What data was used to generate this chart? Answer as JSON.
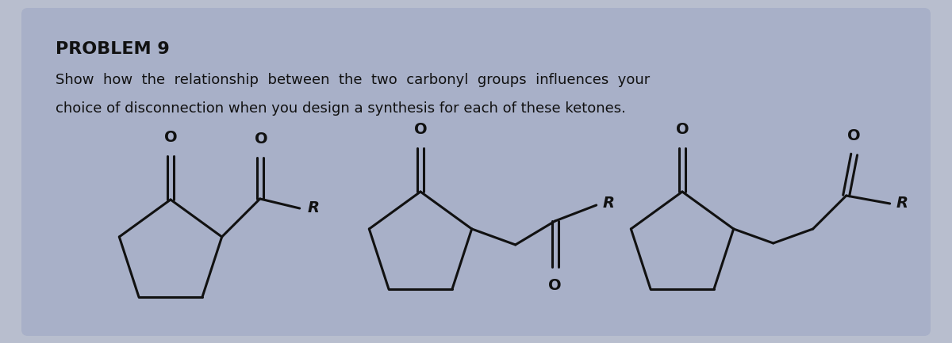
{
  "title": "PROBLEM 9",
  "line1": "Show  how  the  relationship  between  the  two  carbonyl  groups  influences  your",
  "line2": "choice of disconnection when you design a synthesis for each of these ketones.",
  "text_color": "#111111",
  "struct_color": "#111111",
  "card_color": "#a8b0c8",
  "fig_bg": "#b8bece"
}
